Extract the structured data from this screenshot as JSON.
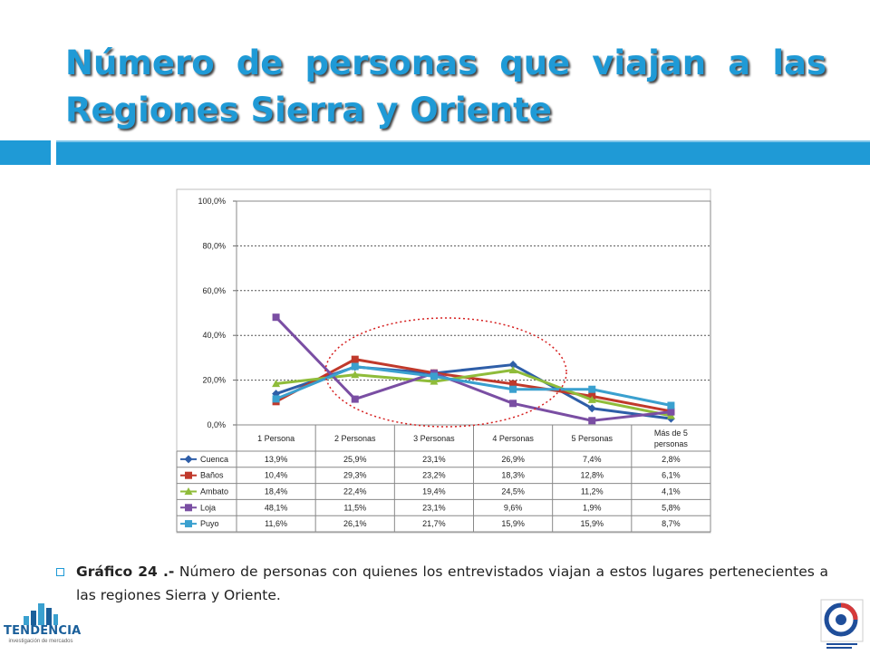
{
  "slide": {
    "title": "Número de personas que viajan a las Regiones Sierra y Oriente",
    "caption_label": "Gráfico 24 .-",
    "caption_text": " Número de personas con quienes los entrevistados viajan a estos lugares pertenecientes a las regiones Sierra y Oriente.",
    "logo_left_word": "TENDENCIA",
    "logo_left_sub": "investigación de mercados",
    "accent_color": "#1f9ad6"
  },
  "chart_data": {
    "type": "line",
    "categories": [
      "1 Persona",
      "2 Personas",
      "3 Personas",
      "4 Personas",
      "5 Personas",
      "Más de 5 personas"
    ],
    "y_ticks": [
      "0,0%",
      "20,0%",
      "40,0%",
      "60,0%",
      "80,0%",
      "100,0%"
    ],
    "ylim": [
      0,
      100
    ],
    "grid": true,
    "legend": "data-table-left",
    "series": [
      {
        "name": "Cuenca",
        "color": "#2e5ea8",
        "marker": "diamond",
        "values": [
          13.9,
          25.9,
          23.1,
          26.9,
          7.4,
          2.8
        ],
        "labels": [
          "13,9%",
          "25,9%",
          "23,1%",
          "26,9%",
          "7,4%",
          "2,8%"
        ]
      },
      {
        "name": "Baños",
        "color": "#c0392b",
        "marker": "square",
        "values": [
          10.4,
          29.3,
          23.2,
          18.3,
          12.8,
          6.1
        ],
        "labels": [
          "10,4%",
          "29,3%",
          "23,2%",
          "18,3%",
          "12,8%",
          "6,1%"
        ]
      },
      {
        "name": "Ambato",
        "color": "#8fbc3a",
        "marker": "triangle",
        "values": [
          18.4,
          22.4,
          19.4,
          24.5,
          11.2,
          4.1
        ],
        "labels": [
          "18,4%",
          "22,4%",
          "19,4%",
          "24,5%",
          "11,2%",
          "4,1%"
        ]
      },
      {
        "name": "Loja",
        "color": "#7a4ea3",
        "marker": "square",
        "values": [
          48.1,
          11.5,
          23.1,
          9.6,
          1.9,
          5.8
        ],
        "labels": [
          "48,1%",
          "11,5%",
          "23,1%",
          "9,6%",
          "1,9%",
          "5,8%"
        ]
      },
      {
        "name": "Puyo",
        "color": "#3aa0cf",
        "marker": "square",
        "values": [
          11.6,
          26.1,
          21.7,
          15.9,
          15.9,
          8.7
        ],
        "labels": [
          "11,6%",
          "26,1%",
          "21,7%",
          "15,9%",
          "15,9%",
          "8,7%"
        ]
      }
    ]
  }
}
